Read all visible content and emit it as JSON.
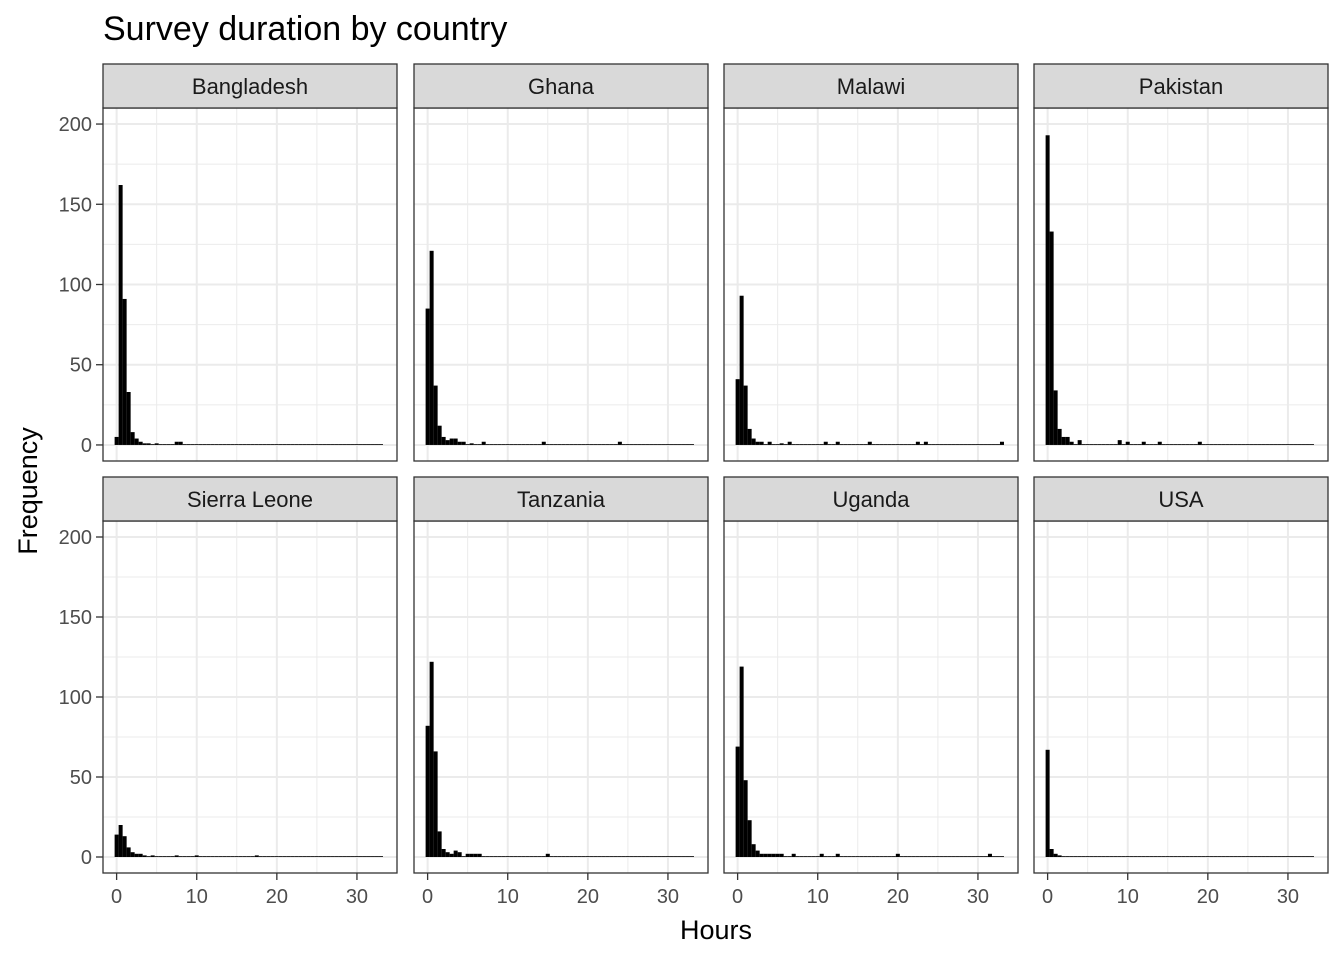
{
  "chart_data": {
    "type": "histogram-facets",
    "title": "Survey duration by country",
    "xlabel": "Hours",
    "ylabel": "Frequency",
    "xlim": [
      -1.7,
      35
    ],
    "ylim": [
      -10,
      210
    ],
    "xticks": [
      0,
      10,
      20,
      30
    ],
    "yticks": [
      0,
      50,
      100,
      150,
      200
    ],
    "bin_width": 0.5,
    "bin_start": -0.25,
    "x_max": 33.25,
    "colors": {
      "bar": "#000000",
      "strip_bg": "#d9d9d9",
      "grid": "#ebebeb",
      "axis_text": "#4d4d4d"
    },
    "panels": [
      {
        "country": "Bangladesh",
        "bins": [
          [
            0,
            5
          ],
          [
            0.5,
            162
          ],
          [
            1.0,
            91
          ],
          [
            1.5,
            33
          ],
          [
            2.0,
            8
          ],
          [
            2.5,
            4
          ],
          [
            3.0,
            2
          ],
          [
            3.5,
            1
          ],
          [
            4.0,
            1
          ],
          [
            5.0,
            1
          ],
          [
            7.5,
            2
          ],
          [
            8.0,
            2
          ]
        ]
      },
      {
        "country": "Ghana",
        "bins": [
          [
            0,
            85
          ],
          [
            0.5,
            121
          ],
          [
            1.0,
            37
          ],
          [
            1.5,
            12
          ],
          [
            2.0,
            5
          ],
          [
            2.5,
            3
          ],
          [
            3.0,
            4
          ],
          [
            3.5,
            4
          ],
          [
            4.0,
            2
          ],
          [
            4.5,
            2
          ],
          [
            5.5,
            1
          ],
          [
            7.0,
            2
          ],
          [
            14.5,
            2
          ],
          [
            24.0,
            2
          ]
        ]
      },
      {
        "country": "Malawi",
        "bins": [
          [
            0,
            41
          ],
          [
            0.5,
            93
          ],
          [
            1.0,
            37
          ],
          [
            1.5,
            10
          ],
          [
            2.0,
            4
          ],
          [
            2.5,
            2
          ],
          [
            3.0,
            2
          ],
          [
            4.0,
            2
          ],
          [
            5.5,
            1
          ],
          [
            6.5,
            2
          ],
          [
            11.0,
            2
          ],
          [
            12.5,
            2
          ],
          [
            16.5,
            2
          ],
          [
            22.5,
            2
          ],
          [
            23.5,
            2
          ],
          [
            33.0,
            2
          ]
        ]
      },
      {
        "country": "Pakistan",
        "bins": [
          [
            0,
            193
          ],
          [
            0.5,
            133
          ],
          [
            1.0,
            34
          ],
          [
            1.5,
            10
          ],
          [
            2.0,
            5
          ],
          [
            2.5,
            5
          ],
          [
            3.0,
            2
          ],
          [
            4.0,
            3
          ],
          [
            9.0,
            3
          ],
          [
            10.0,
            2
          ],
          [
            12.0,
            2
          ],
          [
            14.0,
            2
          ],
          [
            19.0,
            2
          ]
        ]
      },
      {
        "country": "Sierra Leone",
        "bins": [
          [
            0,
            14
          ],
          [
            0.5,
            20
          ],
          [
            1.0,
            13
          ],
          [
            1.5,
            6
          ],
          [
            2.0,
            3
          ],
          [
            2.5,
            2
          ],
          [
            3.0,
            2
          ],
          [
            3.5,
            1
          ],
          [
            4.5,
            1
          ],
          [
            7.5,
            1
          ],
          [
            10.0,
            1
          ],
          [
            17.5,
            1
          ]
        ]
      },
      {
        "country": "Tanzania",
        "bins": [
          [
            0,
            82
          ],
          [
            0.5,
            122
          ],
          [
            1.0,
            66
          ],
          [
            1.5,
            16
          ],
          [
            2.0,
            5
          ],
          [
            2.5,
            3
          ],
          [
            3.0,
            2
          ],
          [
            3.5,
            4
          ],
          [
            4.0,
            3
          ],
          [
            5.0,
            2
          ],
          [
            5.5,
            2
          ],
          [
            6.0,
            2
          ],
          [
            6.5,
            2
          ],
          [
            15.0,
            2
          ]
        ]
      },
      {
        "country": "Uganda",
        "bins": [
          [
            0,
            69
          ],
          [
            0.5,
            119
          ],
          [
            1.0,
            48
          ],
          [
            1.5,
            23
          ],
          [
            2.0,
            8
          ],
          [
            2.5,
            4
          ],
          [
            3.0,
            2
          ],
          [
            3.5,
            2
          ],
          [
            4.0,
            2
          ],
          [
            4.5,
            2
          ],
          [
            5.0,
            2
          ],
          [
            5.5,
            2
          ],
          [
            7.0,
            2
          ],
          [
            10.5,
            2
          ],
          [
            12.5,
            2
          ],
          [
            20.0,
            2
          ],
          [
            31.5,
            2
          ]
        ]
      },
      {
        "country": "USA",
        "bins": [
          [
            0,
            67
          ],
          [
            0.5,
            5
          ],
          [
            1.0,
            2
          ],
          [
            1.5,
            1
          ]
        ]
      }
    ]
  }
}
